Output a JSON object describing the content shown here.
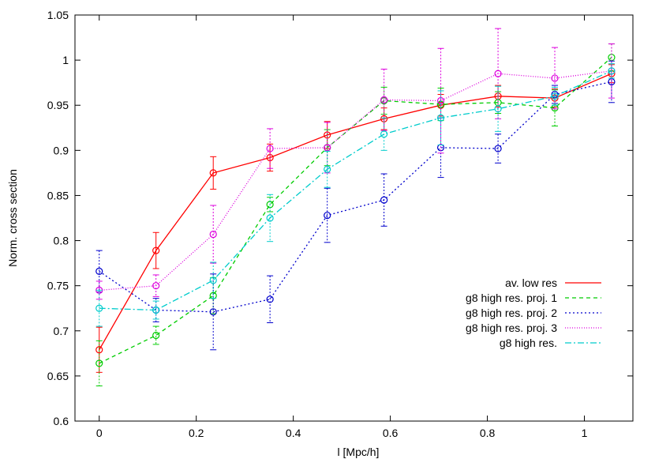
{
  "chart_data": {
    "type": "line",
    "title": "",
    "xlabel": "l [Mpc/h]",
    "ylabel": "Norm. cross section",
    "xlim": [
      -0.05,
      1.1
    ],
    "ylim": [
      0.6,
      1.05
    ],
    "xticks": [
      0,
      0.2,
      0.4,
      0.6,
      0.8,
      1
    ],
    "xtick_labels": [
      "0",
      "0.2",
      "0.4",
      "0.6",
      "0.8",
      "1"
    ],
    "yticks": [
      0.6,
      0.65,
      0.7,
      0.75,
      0.8,
      0.85,
      0.9,
      0.95,
      1,
      1.05
    ],
    "ytick_labels": [
      "0.6",
      "0.65",
      "0.7",
      "0.75",
      "0.8",
      "0.85",
      "0.9",
      "0.95",
      "1",
      "1.05"
    ],
    "grid": false,
    "legend_position": "lower-right",
    "x": [
      0,
      0.117,
      0.235,
      0.352,
      0.47,
      0.587,
      0.704,
      0.822,
      0.939,
      1.056
    ],
    "series": [
      {
        "name": "av. low res",
        "color": "#ff0000",
        "dash": "solid",
        "values": [
          0.679,
          0.789,
          0.875,
          0.892,
          0.917,
          0.935,
          0.95,
          0.96,
          0.958,
          0.985
        ],
        "errors": [
          0.025,
          0.02,
          0.018,
          0.015,
          0.015,
          0.012,
          0.012,
          0.012,
          0.01,
          0.01
        ]
      },
      {
        "name": "g8 high res. proj. 1",
        "color": "#00cc00",
        "dash": "dashed",
        "values": [
          0.664,
          0.695,
          0.739,
          0.84,
          0.903,
          0.955,
          0.951,
          0.953,
          0.947,
          1.003
        ],
        "errors": [
          0.025,
          0.01,
          0.02,
          0.008,
          0.02,
          0.015,
          0.018,
          0.012,
          0.02,
          0.015
        ]
      },
      {
        "name": "g8 high res. proj. 2",
        "color": "#0000cc",
        "dash": "dotted",
        "values": [
          0.766,
          0.723,
          0.721,
          0.735,
          0.828,
          0.845,
          0.903,
          0.902,
          0.962,
          0.976
        ],
        "errors": [
          0.023,
          0.013,
          0.042,
          0.026,
          0.03,
          0.029,
          0.033,
          0.016,
          0.01,
          0.023
        ]
      },
      {
        "name": "g8 high res. proj. 3",
        "color": "#dd00dd",
        "dash": "dotted-fine",
        "values": [
          0.745,
          0.75,
          0.807,
          0.902,
          0.903,
          0.956,
          0.955,
          0.985,
          0.98,
          0.988
        ],
        "errors": [
          0.01,
          0.012,
          0.032,
          0.022,
          0.028,
          0.034,
          0.058,
          0.05,
          0.034,
          0.03
        ]
      },
      {
        "name": "g8 high res.",
        "color": "#00cccc",
        "dash": "dash-dot",
        "values": [
          0.725,
          0.723,
          0.756,
          0.825,
          0.879,
          0.918,
          0.936,
          0.946,
          0.96,
          0.988
        ],
        "errors": [
          0.02,
          0.01,
          0.02,
          0.026,
          0.02,
          0.018,
          0.03,
          0.025,
          0.01,
          0.008
        ]
      }
    ]
  }
}
